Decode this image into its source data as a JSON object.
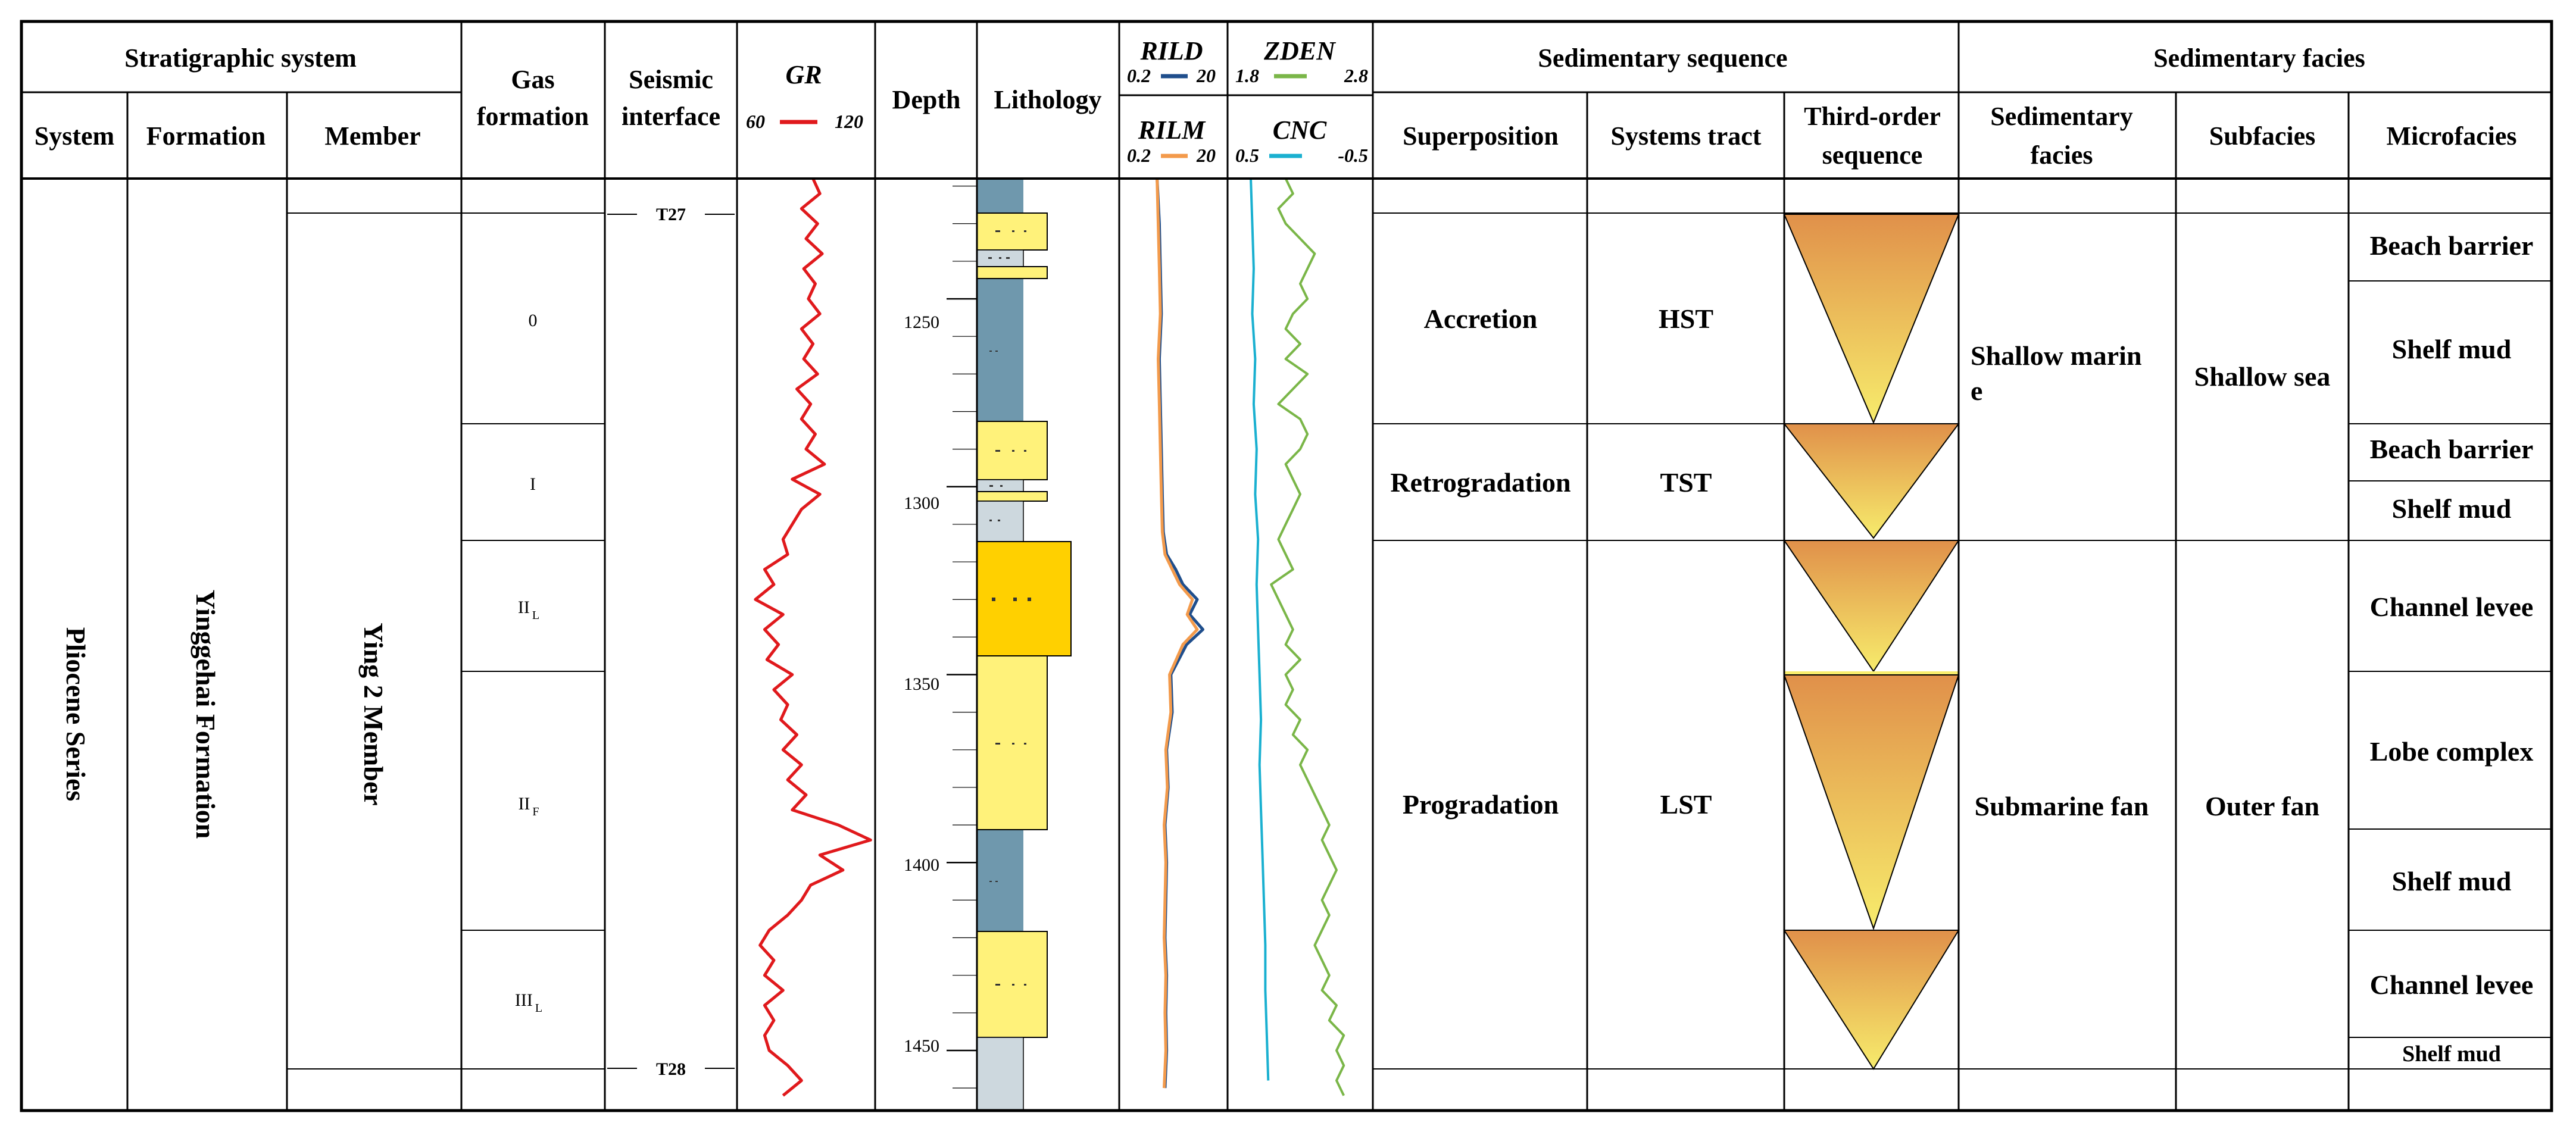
{
  "headers": {
    "stratigraphic_system": "Stratigraphic system",
    "system": "System",
    "formation": "Formation",
    "member": "Member",
    "gas_formation": [
      "Gas",
      "formation"
    ],
    "seismic_interface": [
      "Seismic",
      "interface"
    ],
    "gr": "GR",
    "gr_min": "60",
    "gr_max": "120",
    "depth": "Depth",
    "lithology": "Lithology",
    "rild": "RILD",
    "rild_min": "0.2",
    "rild_max": "20",
    "rilm": "RILM",
    "rilm_min": "0.2",
    "rilm_max": "20",
    "zden": "ZDEN",
    "zden_min": "1.8",
    "zden_max": "2.8",
    "cnc": "CNC",
    "cnc_min": "0.5",
    "cnc_max": "-0.5",
    "sedimentary_sequence": "Sedimentary sequence",
    "superposition": "Superposition",
    "systems_tract": "Systems tract",
    "third_order": [
      "Third-order",
      "sequence"
    ],
    "sedimentary_facies": "Sedimentary facies",
    "sed_facies_sub": [
      "Sedimentary",
      "facies"
    ],
    "subfacies": "Subfacies",
    "microfacies": "Microfacies"
  },
  "strat": {
    "system": "Pliocene Series",
    "formation": "Yinggehai Formation",
    "member": "Ying 2 Member"
  },
  "gas_zones": [
    "0",
    "I",
    "II",
    "II",
    "III"
  ],
  "gas_zone_subs": [
    "",
    "",
    "L",
    "F",
    "L"
  ],
  "seismic": {
    "top": "T27",
    "bottom": "T28"
  },
  "depth_ticks": [
    "1250",
    "1300",
    "1350",
    "1400",
    "1450"
  ],
  "sequence": {
    "superposition": [
      "Accretion",
      "Retrogradation",
      "Progradation"
    ],
    "systems_tract": [
      "HST",
      "TST",
      "LST"
    ]
  },
  "facies": {
    "sedimentary": [
      "Shallow marin",
      "e",
      "Submarine fan"
    ],
    "subfacies": [
      "Shallow sea",
      "Outer fan"
    ],
    "micro": [
      "Beach barrier",
      "Shelf mud",
      "Beach barrier",
      "Shelf mud",
      "Channel levee",
      "Lobe complex",
      "Shelf mud",
      "Channel levee",
      "Shelf mud"
    ]
  },
  "colors": {
    "gr_curve": "#e0191c",
    "rild_curve": "#1f4e8c",
    "rilm_curve": "#f39a4b",
    "zden_curve": "#7ab648",
    "cnc_curve": "#1ab0d0",
    "sandstone": "#fff27a",
    "sandstone_dark": "#ffd000",
    "mudstone": "#6f98ad",
    "siltstone": "#cdd8de",
    "triangle_top": "#e0904a",
    "triangle_bottom": "#f7ec6c"
  },
  "chart_data": {
    "type": "line",
    "x_axis": "Depth",
    "depth_range": [
      1218,
      1466
    ],
    "series": [
      {
        "name": "GR",
        "range": [
          60,
          120
        ],
        "depth": [
          1218,
          1222,
          1226,
          1230,
          1234,
          1238,
          1242,
          1246,
          1250,
          1254,
          1258,
          1262,
          1266,
          1270,
          1274,
          1278,
          1282,
          1286,
          1290,
          1294,
          1298,
          1302,
          1306,
          1310,
          1314,
          1318,
          1322,
          1326,
          1330,
          1334,
          1338,
          1342,
          1346,
          1350,
          1354,
          1358,
          1362,
          1366,
          1370,
          1374,
          1378,
          1382,
          1386,
          1390,
          1394,
          1398,
          1402,
          1406,
          1410,
          1414,
          1418,
          1422,
          1426,
          1430,
          1434,
          1438,
          1442,
          1446,
          1450,
          1454,
          1458,
          1462
        ],
        "values": [
          93,
          96,
          88,
          95,
          90,
          97,
          89,
          94,
          91,
          96,
          88,
          93,
          89,
          95,
          86,
          92,
          88,
          94,
          90,
          98,
          84,
          96,
          88,
          84,
          80,
          82,
          72,
          76,
          68,
          80,
          72,
          78,
          73,
          84,
          76,
          82,
          79,
          86,
          80,
          88,
          82,
          90,
          84,
          104,
          118,
          96,
          106,
          92,
          88,
          82,
          74,
          70,
          76,
          72,
          80,
          72,
          76,
          72,
          74,
          82,
          88,
          80
        ]
      },
      {
        "name": "RILD",
        "range": [
          0.2,
          20
        ],
        "depth": [
          1218,
          1230,
          1242,
          1254,
          1266,
          1278,
          1290,
          1302,
          1312,
          1318,
          1322,
          1326,
          1330,
          1334,
          1338,
          1342,
          1350,
          1360,
          1370,
          1380,
          1390,
          1400,
          1410,
          1420,
          1430,
          1440,
          1450,
          1460
        ],
        "values": [
          1.0,
          1.1,
          1.15,
          1.2,
          1.1,
          1.15,
          1.2,
          1.25,
          1.3,
          1.5,
          2.2,
          3.0,
          5.5,
          4.0,
          7.0,
          3.5,
          1.8,
          1.9,
          1.5,
          1.6,
          1.4,
          1.5,
          1.45,
          1.4,
          1.5,
          1.45,
          1.5,
          1.4
        ]
      },
      {
        "name": "RILM",
        "range": [
          0.2,
          20
        ],
        "depth": [
          1218,
          1230,
          1242,
          1254,
          1266,
          1278,
          1290,
          1302,
          1312,
          1318,
          1322,
          1326,
          1330,
          1334,
          1338,
          1342,
          1350,
          1360,
          1370,
          1380,
          1390,
          1400,
          1410,
          1420,
          1430,
          1440,
          1450,
          1460
        ],
        "values": [
          1.0,
          1.05,
          1.1,
          1.15,
          1.05,
          1.1,
          1.15,
          1.2,
          1.25,
          1.4,
          1.9,
          2.6,
          4.5,
          3.6,
          5.5,
          3.0,
          1.7,
          1.8,
          1.45,
          1.55,
          1.35,
          1.45,
          1.4,
          1.35,
          1.45,
          1.4,
          1.45,
          1.35
        ]
      },
      {
        "name": "ZDEN",
        "range": [
          1.8,
          2.8
        ],
        "depth": [
          1218,
          1222,
          1226,
          1230,
          1234,
          1238,
          1242,
          1246,
          1250,
          1254,
          1258,
          1262,
          1266,
          1270,
          1274,
          1278,
          1282,
          1286,
          1290,
          1294,
          1298,
          1302,
          1306,
          1310,
          1314,
          1318,
          1322,
          1326,
          1330,
          1334,
          1338,
          1342,
          1346,
          1350,
          1354,
          1358,
          1362,
          1366,
          1370,
          1374,
          1378,
          1382,
          1386,
          1390,
          1394,
          1398,
          1402,
          1406,
          1410,
          1414,
          1418,
          1422,
          1426,
          1430,
          1434,
          1438,
          1442,
          1446,
          1450,
          1454,
          1458,
          1462
        ],
        "values": [
          2.2,
          2.25,
          2.15,
          2.2,
          2.3,
          2.4,
          2.35,
          2.3,
          2.35,
          2.25,
          2.2,
          2.3,
          2.2,
          2.35,
          2.25,
          2.15,
          2.3,
          2.35,
          2.3,
          2.2,
          2.25,
          2.3,
          2.25,
          2.2,
          2.15,
          2.2,
          2.25,
          2.1,
          2.15,
          2.2,
          2.25,
          2.2,
          2.3,
          2.2,
          2.25,
          2.2,
          2.3,
          2.25,
          2.35,
          2.3,
          2.35,
          2.4,
          2.45,
          2.5,
          2.45,
          2.5,
          2.55,
          2.5,
          2.45,
          2.5,
          2.45,
          2.4,
          2.45,
          2.5,
          2.45,
          2.55,
          2.5,
          2.6,
          2.55,
          2.6,
          2.55,
          2.6
        ]
      },
      {
        "name": "CNC",
        "range": [
          0.5,
          -0.5
        ],
        "depth": [
          1218,
          1230,
          1242,
          1254,
          1266,
          1278,
          1290,
          1302,
          1314,
          1326,
          1338,
          1350,
          1362,
          1374,
          1386,
          1398,
          1410,
          1422,
          1434,
          1446,
          1458
        ],
        "values": [
          0.34,
          0.33,
          0.32,
          0.33,
          0.31,
          0.32,
          0.3,
          0.31,
          0.29,
          0.3,
          0.29,
          0.28,
          0.27,
          0.28,
          0.27,
          0.26,
          0.25,
          0.24,
          0.24,
          0.23,
          0.22
        ]
      }
    ]
  }
}
